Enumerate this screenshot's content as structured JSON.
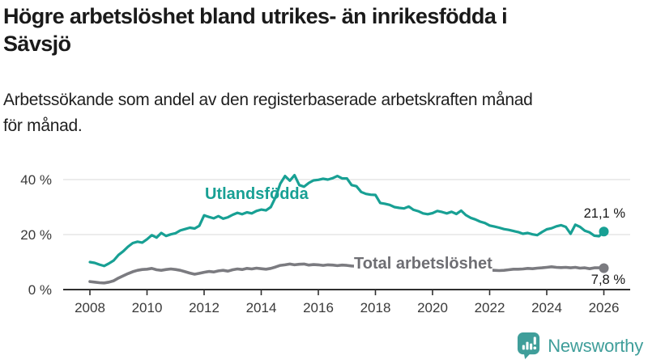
{
  "header": {
    "title": "Högre arbetslöshet bland utrikes- än inrikesfödda i Sävsjö",
    "title_lines": [
      "Högre arbetslöshet bland utrikes- än inrikesfödda i",
      "Sävsjö"
    ],
    "subtitle": "Arbetssökande som andel av den registerbaserade arbetskraften månad för månad.",
    "subtitle_lines": [
      "Arbetssökande som andel av den registerbaserade arbetskraften månad",
      "för månad."
    ]
  },
  "chart_data": {
    "type": "line",
    "title": "Högre arbetslöshet bland utrikes- än inrikesfödda i Sävsjö",
    "subtitle": "Arbetssökande som andel av den registerbaserade arbetskraften månad för månad.",
    "unit": "%",
    "grid": "horizontal-only",
    "legend": "inline-series-labels",
    "x_start": 2008,
    "x_step_years": 0.1666667,
    "x_ticks": [
      2008,
      2010,
      2012,
      2014,
      2016,
      2018,
      2020,
      2022,
      2024,
      2026
    ],
    "xlim": [
      2007.9,
      2026.9
    ],
    "ylim": [
      0,
      44
    ],
    "y_ticks": [
      {
        "value": 40,
        "label": "40 %"
      },
      {
        "value": 20,
        "label": "20 %"
      },
      {
        "value": 0,
        "label": "0 %"
      }
    ],
    "series": [
      {
        "name": "Utlandsfödda",
        "color": "#18A094",
        "end_label": "21,1 %",
        "end_value": 21.1,
        "values": [
          10.0,
          9.7,
          9.1,
          8.6,
          9.5,
          10.6,
          12.6,
          13.9,
          15.6,
          16.9,
          17.4,
          17.1,
          18.3,
          19.8,
          18.9,
          20.6,
          19.5,
          20.1,
          20.5,
          21.5,
          22.0,
          22.5,
          22.2,
          23.2,
          27.0,
          26.4,
          25.9,
          26.7,
          25.8,
          26.3,
          27.2,
          27.9,
          27.4,
          28.1,
          27.7,
          28.6,
          29.1,
          28.8,
          30.0,
          33.5,
          38.5,
          41.3,
          39.6,
          41.6,
          38.0,
          37.4,
          38.8,
          39.7,
          39.9,
          40.3,
          40.0,
          40.5,
          41.3,
          40.4,
          40.4,
          38.0,
          37.6,
          35.5,
          34.8,
          34.5,
          34.4,
          31.5,
          31.2,
          30.8,
          30.0,
          29.7,
          29.5,
          30.2,
          29.0,
          28.5,
          27.7,
          27.4,
          27.8,
          28.6,
          28.2,
          27.7,
          28.3,
          27.5,
          28.7,
          27.1,
          26.1,
          25.5,
          24.7,
          24.2,
          23.3,
          22.9,
          22.5,
          22.0,
          21.7,
          21.3,
          20.9,
          20.3,
          20.6,
          20.1,
          19.8,
          20.9,
          21.9,
          22.3,
          23.0,
          23.4,
          22.8,
          20.3,
          23.6,
          22.8,
          21.4,
          20.8,
          19.6,
          19.4,
          21.1
        ]
      },
      {
        "name": "Total arbetslöshet",
        "color": "#7B7B80",
        "end_label": "7,8 %",
        "end_value": 7.8,
        "values": [
          2.9,
          2.7,
          2.5,
          2.4,
          2.7,
          3.2,
          4.2,
          5.0,
          5.8,
          6.5,
          7.0,
          7.3,
          7.4,
          7.7,
          7.2,
          7.0,
          7.3,
          7.5,
          7.3,
          7.0,
          6.5,
          6.0,
          5.6,
          5.9,
          6.3,
          6.6,
          6.4,
          6.8,
          7.0,
          6.7,
          7.2,
          7.5,
          7.3,
          7.7,
          7.5,
          7.8,
          7.6,
          7.4,
          7.7,
          8.2,
          8.8,
          9.0,
          9.3,
          9.0,
          9.2,
          9.3,
          8.9,
          9.1,
          9.0,
          8.8,
          9.0,
          8.9,
          8.7,
          8.9,
          8.8,
          8.6,
          8.5,
          8.3,
          8.2,
          8.1,
          8.0,
          7.8,
          7.7,
          7.5,
          7.4,
          7.3,
          7.2,
          7.1,
          7.2,
          7.1,
          7.2,
          7.4,
          7.8,
          8.3,
          8.6,
          8.5,
          8.4,
          8.3,
          8.2,
          8.0,
          7.8,
          7.6,
          7.4,
          7.2,
          7.1,
          7.0,
          6.9,
          7.0,
          7.2,
          7.4,
          7.4,
          7.5,
          7.7,
          7.6,
          7.8,
          7.9,
          8.1,
          8.3,
          8.1,
          8.0,
          8.1,
          7.9,
          8.1,
          7.8,
          7.9,
          7.6,
          7.9,
          7.9,
          7.8
        ]
      }
    ]
  },
  "footer": {
    "brand": "Newsworthy",
    "brand_color": "#3F9E9A",
    "logo_icon": "bar-chart-speech-bubble"
  }
}
